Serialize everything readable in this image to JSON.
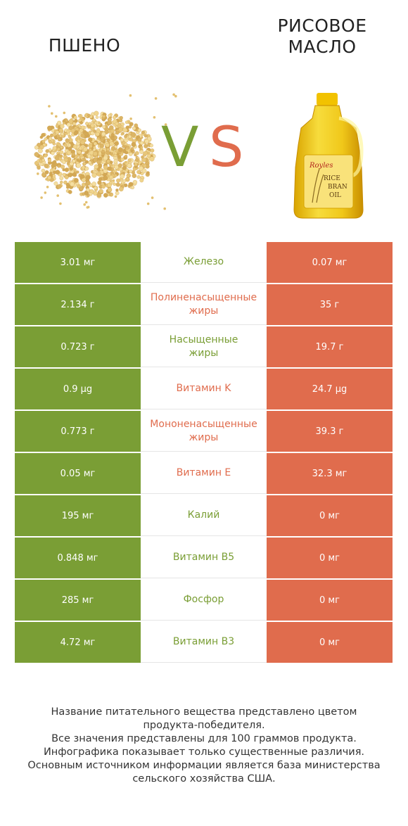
{
  "titles": {
    "left": "ПШЕНО",
    "right_line1": "РИСОВОЕ",
    "right_line2": "МАСЛО"
  },
  "vs": {
    "v": "V",
    "s": "S"
  },
  "colors": {
    "left": "#7a9e35",
    "right": "#e06c4d"
  },
  "images": {
    "left": "millet-grains-image",
    "right": "rice-bran-oil-bottle-image"
  },
  "bottle_label": {
    "brand": "Royles",
    "line1": "RICE",
    "line2": "BRAN",
    "line3": "OIL"
  },
  "rows": [
    {
      "left": "3.01 мг",
      "name": "Железо",
      "right": "0.07 мг",
      "winner": "left"
    },
    {
      "left": "2.134 г",
      "name": "Полиненасыщенные\nжиры",
      "right": "35 г",
      "winner": "right"
    },
    {
      "left": "0.723 г",
      "name": "Насыщенные\nжиры",
      "right": "19.7 г",
      "winner": "left"
    },
    {
      "left": "0.9 µg",
      "name": "Витамин K",
      "right": "24.7 µg",
      "winner": "right"
    },
    {
      "left": "0.773 г",
      "name": "Мононенасыщенные\nжиры",
      "right": "39.3 г",
      "winner": "right"
    },
    {
      "left": "0.05 мг",
      "name": "Витамин E",
      "right": "32.3 мг",
      "winner": "right"
    },
    {
      "left": "195 мг",
      "name": "Калий",
      "right": "0 мг",
      "winner": "left"
    },
    {
      "left": "0.848 мг",
      "name": "Витамин B5",
      "right": "0 мг",
      "winner": "left"
    },
    {
      "left": "285 мг",
      "name": "Фосфор",
      "right": "0 мг",
      "winner": "left"
    },
    {
      "left": "4.72 мг",
      "name": "Витамин B3",
      "right": "0 мг",
      "winner": "left"
    }
  ],
  "footer": [
    "Название питательного вещества представлено цветом",
    "продукта-победителя.",
    "Все значения представлены для 100 граммов продукта.",
    "Инфографика показывает только существенные различия.",
    "Основным источником информации является база министерства",
    "сельского хозяйства США."
  ]
}
